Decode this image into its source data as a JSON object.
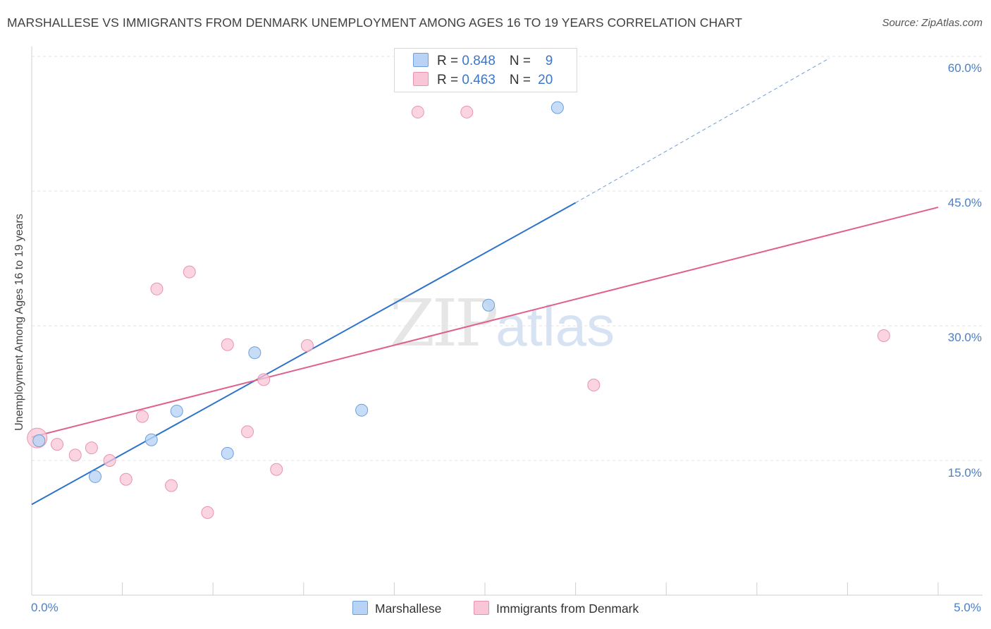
{
  "header": {
    "title": "MARSHALLESE VS IMMIGRANTS FROM DENMARK UNEMPLOYMENT AMONG AGES 16 TO 19 YEARS CORRELATION CHART",
    "source": "Source: ZipAtlas.com"
  },
  "watermark": {
    "zip": "ZIP",
    "atlas": "atlas"
  },
  "legend": {
    "rows": [
      {
        "r_label": "R = ",
        "r_value": "0.848",
        "n_label": "N = ",
        "n_value": " 9"
      },
      {
        "r_label": "R = ",
        "r_value": "0.463",
        "n_label": "N = ",
        "n_value": "20"
      }
    ]
  },
  "bottom_legend": {
    "series1": "Marshallese",
    "series2": "Immigrants from Denmark"
  },
  "colors": {
    "marshallese_fill": "#b8d3f5",
    "marshallese_stroke": "#6e9fd8",
    "marshallese_line": "#2f72cc",
    "denmark_fill": "#f8c6d6",
    "denmark_stroke": "#e894b0",
    "denmark_line": "#e0608a"
  },
  "chart_data": {
    "type": "scatter",
    "title": "MARSHALLESE VS IMMIGRANTS FROM DENMARK UNEMPLOYMENT AMONG AGES 16 TO 19 YEARS CORRELATION CHART",
    "xlabel": "",
    "ylabel": "Unemployment Among Ages 16 to 19 years",
    "xlim": [
      0.0,
      5.0
    ],
    "ylim": [
      0.0,
      60.0
    ],
    "x_tick_labels": [
      "0.0%",
      "5.0%"
    ],
    "y_ticks": [
      15,
      30,
      45,
      60
    ],
    "y_tick_labels": [
      "15.0%",
      "30.0%",
      "45.0%",
      "60.0%"
    ],
    "series": [
      {
        "name": "Marshallese",
        "R": 0.848,
        "N": 9,
        "points": [
          {
            "x": 0.04,
            "y": 17.2
          },
          {
            "x": 0.35,
            "y": 13.2
          },
          {
            "x": 0.66,
            "y": 17.3
          },
          {
            "x": 0.8,
            "y": 20.5
          },
          {
            "x": 1.08,
            "y": 15.8
          },
          {
            "x": 1.23,
            "y": 27.0
          },
          {
            "x": 1.82,
            "y": 20.6
          },
          {
            "x": 2.52,
            "y": 32.3
          },
          {
            "x": 2.9,
            "y": 54.3
          }
        ],
        "trendline": {
          "x0": 0.0,
          "y0": 10.1,
          "x1": 3.0,
          "y1": 43.7,
          "dashed_to_x": 4.4,
          "dashed_to_y": 59.8
        }
      },
      {
        "name": "Immigrants from Denmark",
        "R": 0.463,
        "N": 20,
        "points": [
          {
            "x": 0.03,
            "y": 17.5
          },
          {
            "x": 0.14,
            "y": 16.8
          },
          {
            "x": 0.24,
            "y": 15.6
          },
          {
            "x": 0.33,
            "y": 16.4
          },
          {
            "x": 0.43,
            "y": 15.0
          },
          {
            "x": 0.52,
            "y": 12.9
          },
          {
            "x": 0.61,
            "y": 19.9
          },
          {
            "x": 0.69,
            "y": 34.1
          },
          {
            "x": 0.77,
            "y": 12.2
          },
          {
            "x": 0.87,
            "y": 36.0
          },
          {
            "x": 0.97,
            "y": 9.2
          },
          {
            "x": 1.08,
            "y": 27.9
          },
          {
            "x": 1.19,
            "y": 18.2
          },
          {
            "x": 1.28,
            "y": 24.0
          },
          {
            "x": 1.35,
            "y": 14.0
          },
          {
            "x": 1.52,
            "y": 27.8
          },
          {
            "x": 2.13,
            "y": 53.8
          },
          {
            "x": 2.4,
            "y": 53.8
          },
          {
            "x": 3.1,
            "y": 23.4
          },
          {
            "x": 4.7,
            "y": 28.9
          }
        ],
        "trendline": {
          "x0": 0.0,
          "y0": 17.6,
          "x1": 5.0,
          "y1": 43.2
        }
      }
    ]
  }
}
